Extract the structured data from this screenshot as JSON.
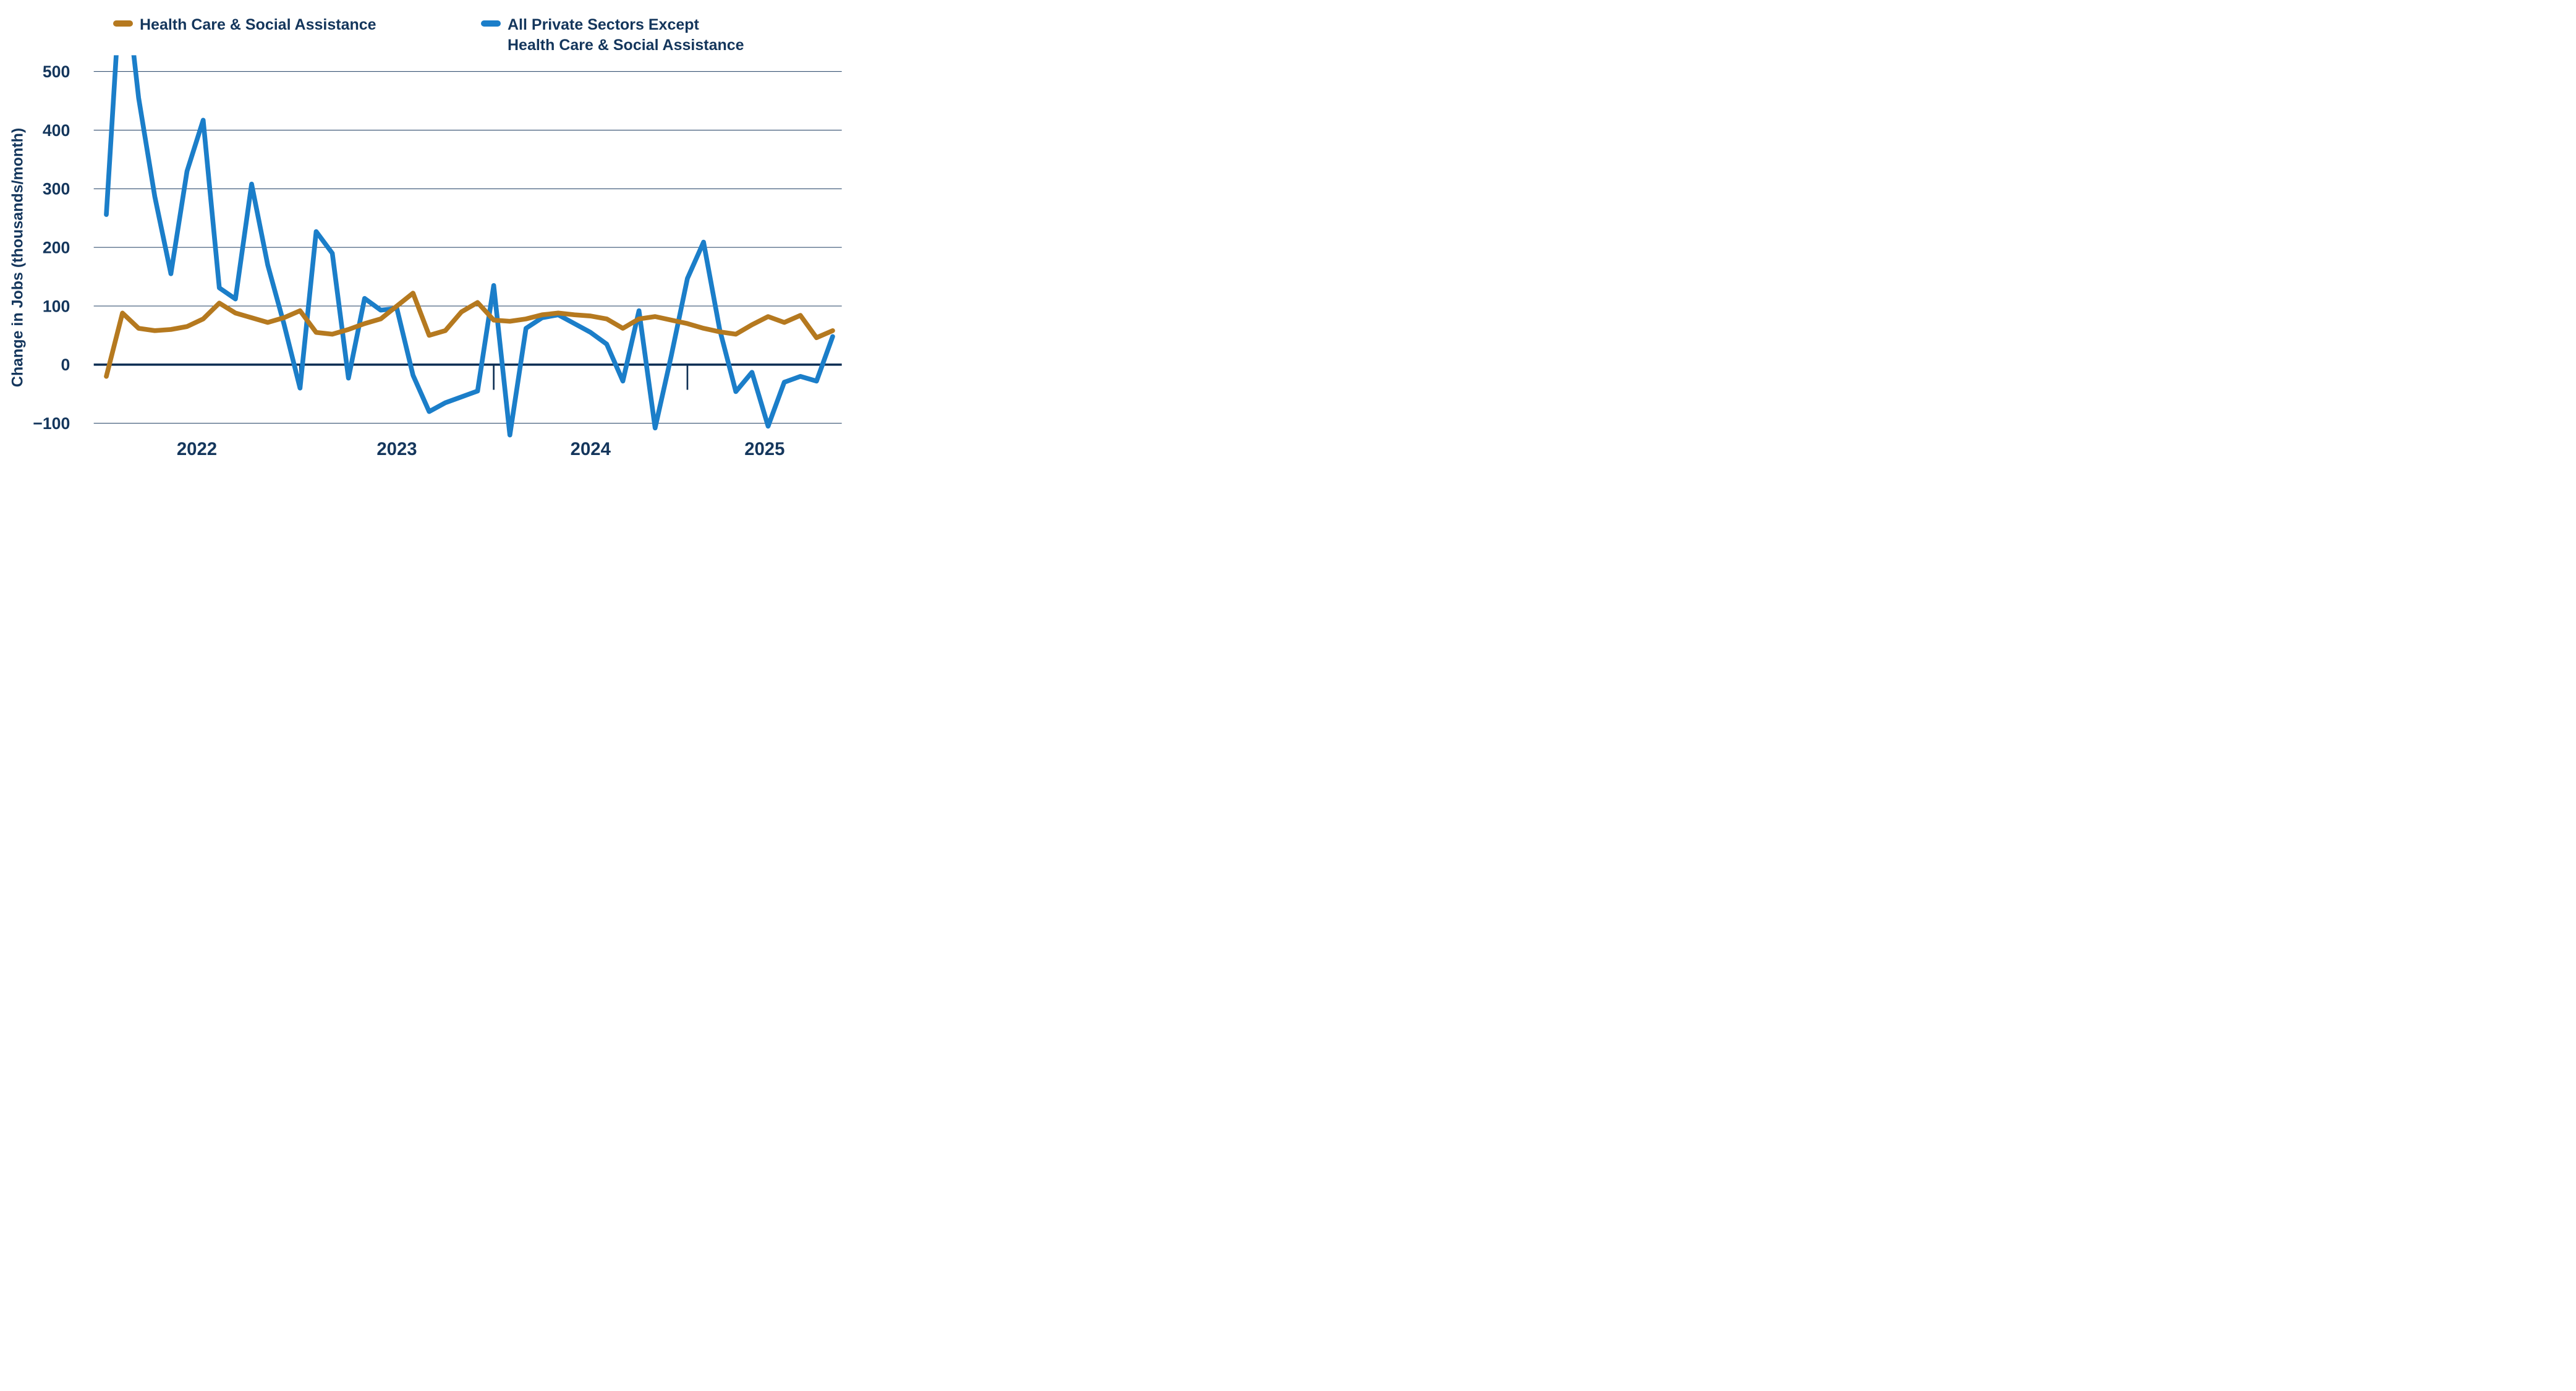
{
  "chart_data": {
    "type": "line",
    "title": "",
    "xlabel": "",
    "ylabel": "Change in Jobs (thousands/month)",
    "ylim": [
      -130,
      528
    ],
    "yticks": [
      500,
      400,
      300,
      200,
      100,
      0,
      -100
    ],
    "grid": "horizontal-gridlines-every-100",
    "legend_position": "top",
    "x_unit": "month",
    "x_start": "2022-01",
    "x_end": "2025-10",
    "year_tick_month_indices": [
      12,
      24,
      36
    ],
    "year_labels": [
      "2022",
      "2023",
      "2024",
      "2025"
    ],
    "months": [
      "2022-01",
      "2022-02",
      "2022-03",
      "2022-04",
      "2022-05",
      "2022-06",
      "2022-07",
      "2022-08",
      "2022-09",
      "2022-10",
      "2022-11",
      "2022-12",
      "2023-01",
      "2023-02",
      "2023-03",
      "2023-04",
      "2023-05",
      "2023-06",
      "2023-07",
      "2023-08",
      "2023-09",
      "2023-10",
      "2023-11",
      "2023-12",
      "2024-01",
      "2024-02",
      "2024-03",
      "2024-04",
      "2024-05",
      "2024-06",
      "2024-07",
      "2024-08",
      "2024-09",
      "2024-10",
      "2024-11",
      "2024-12",
      "2025-01",
      "2025-02",
      "2025-03",
      "2025-04",
      "2025-05",
      "2025-06",
      "2025-07",
      "2025-08",
      "2025-09",
      "2025-10"
    ],
    "series": [
      {
        "name": "All Private Sectors Except Health Care & Social Assistance",
        "color": "#1b7ec9",
        "clipped_note": "2022-02 peak exceeds plot top",
        "values": [
          256,
          700,
          455,
          287,
          155,
          330,
          417,
          131,
          112,
          308,
          170,
          70,
          -40,
          227,
          190,
          -23,
          113,
          93,
          96,
          -18,
          -80,
          -65,
          -55,
          -45,
          135,
          -120,
          62,
          80,
          85,
          70,
          55,
          35,
          -28,
          92,
          -108,
          15,
          147,
          209,
          60,
          -46,
          -13,
          -105,
          -30,
          -20,
          -28,
          48
        ]
      },
      {
        "name": "Health Care & Social Assistance",
        "color": "#b5791f",
        "values": [
          -20,
          88,
          62,
          58,
          60,
          65,
          78,
          105,
          88,
          80,
          72,
          80,
          92,
          55,
          52,
          60,
          70,
          78,
          100,
          122,
          50,
          58,
          90,
          106,
          76,
          74,
          78,
          85,
          88,
          85,
          83,
          78,
          62,
          78,
          82,
          76,
          70,
          62,
          56,
          52,
          68,
          82,
          72,
          84,
          46,
          58
        ]
      }
    ]
  },
  "legend": {
    "item1": "Health Care & Social Assistance",
    "item2_line1": "All Private Sectors Except",
    "item2_line2": "Health Care & Social Assistance"
  },
  "axis": {
    "y_title": "Change in Jobs (thousands/month)"
  },
  "colors": {
    "health_care_line": "#b5791f",
    "private_ex_health_line": "#1b7ec9",
    "text_navy": "#14365c",
    "gridline": "#1c3c60",
    "zero_axis": "#0f3055",
    "background": "#ffffff"
  }
}
